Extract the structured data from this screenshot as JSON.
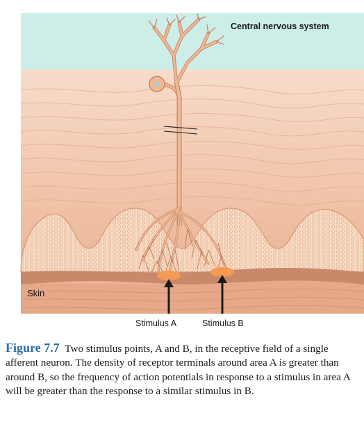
{
  "diagram": {
    "cns_label": "Central nervous system",
    "skin_label": "Skin",
    "stimulus_a_label": "Stimulus A",
    "stimulus_b_label": "Stimulus B",
    "colors": {
      "cns_region": "#cdeee8",
      "skin_base": "#f1c2a8",
      "skin_dermis": "#e9ad8e",
      "papillae": "#f6d8c3",
      "epidermis_band": "#c8896b",
      "neuron": "#eeb996",
      "neuron_outline": "#c98767",
      "stimulus_spot": "#f59a52",
      "arrow": "#1a1a1a"
    }
  },
  "caption": {
    "figure_number": "Figure 7.7",
    "text": "Two stimulus points, A and B, in the receptive field of a single afferent neuron. The density of receptor terminals around area A is greater than around B, so the frequency of action potentials in response to a stimulus in area A will be greater than the response to a similar stimulus in B."
  }
}
